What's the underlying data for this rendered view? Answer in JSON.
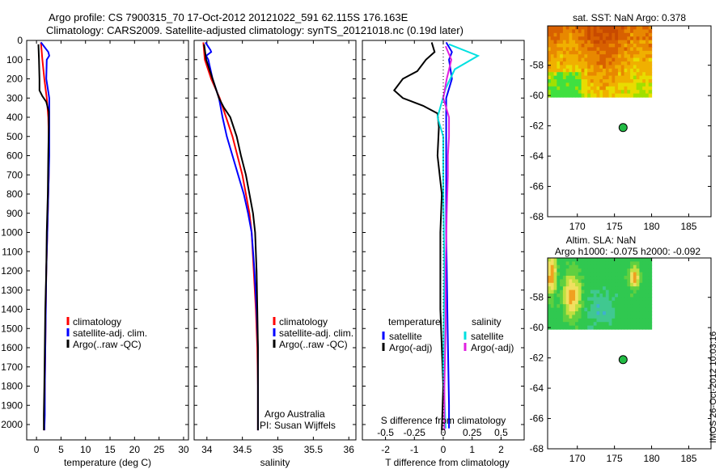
{
  "page": {
    "title_line1": "Argo profile: CS 7900315_70 17-Oct-2012 20121022_591 62.115S 176.163E",
    "title_line2": "Climatology: CARS2009. Satellite-adjusted climatology: synTS_20121018.nc (0.19d later)",
    "stamp": "IMOS 26-Oct-2012 10:03:16"
  },
  "chart_data": [
    {
      "id": "temperature",
      "type": "line",
      "xlabel": "temperature (deg C)",
      "ylabel": "",
      "xlim": [
        -2,
        31
      ],
      "ylim": [
        2080,
        0
      ],
      "xticks": [
        0,
        5,
        10,
        15,
        20,
        25,
        30
      ],
      "yticks": [
        0,
        100,
        200,
        300,
        400,
        500,
        600,
        700,
        800,
        900,
        1000,
        1100,
        1200,
        1300,
        1400,
        1500,
        1600,
        1700,
        1800,
        1900,
        2000
      ],
      "legend": [
        "climatology",
        "satellite-adj. clim.",
        "Argo(..raw -QC)"
      ],
      "series": [
        {
          "name": "climatology",
          "color": "#ff0000",
          "points": [
            [
              0.9,
              10
            ],
            [
              1.2,
              100
            ],
            [
              1.6,
              200
            ],
            [
              2.1,
              300
            ],
            [
              2.4,
              400
            ],
            [
              2.5,
              500
            ],
            [
              2.5,
              700
            ],
            [
              2.4,
              800
            ],
            [
              2.2,
              1000
            ],
            [
              2.0,
              1200
            ],
            [
              1.9,
              1400
            ],
            [
              1.8,
              1600
            ],
            [
              1.7,
              1800
            ],
            [
              1.6,
              1950
            ],
            [
              1.6,
              2030
            ]
          ]
        },
        {
          "name": "satellite-adj. clim.",
          "color": "#0000ff",
          "points": [
            [
              0.9,
              10
            ],
            [
              2.4,
              60
            ],
            [
              2.6,
              80
            ],
            [
              2.1,
              100
            ],
            [
              2.0,
              200
            ],
            [
              2.6,
              300
            ],
            [
              2.6,
              400
            ],
            [
              2.6,
              600
            ],
            [
              2.4,
              800
            ],
            [
              2.2,
              1000
            ],
            [
              2.0,
              1200
            ],
            [
              1.9,
              1400
            ],
            [
              1.8,
              1600
            ],
            [
              1.7,
              1800
            ],
            [
              1.7,
              1950
            ],
            [
              1.6,
              2030
            ]
          ]
        },
        {
          "name": "Argo(..raw -QC)",
          "color": "#000000",
          "points": [
            [
              0.4,
              20
            ],
            [
              0.5,
              100
            ],
            [
              0.6,
              200
            ],
            [
              0.6,
              260
            ],
            [
              1.2,
              290
            ],
            [
              2.0,
              320
            ],
            [
              2.5,
              370
            ],
            [
              2.5,
              450
            ],
            [
              2.4,
              600
            ],
            [
              2.3,
              800
            ],
            [
              2.1,
              1000
            ],
            [
              2.0,
              1200
            ],
            [
              1.8,
              1400
            ],
            [
              1.7,
              1600
            ],
            [
              1.6,
              1800
            ],
            [
              1.5,
              1950
            ],
            [
              1.5,
              2030
            ]
          ]
        }
      ]
    },
    {
      "id": "salinity",
      "type": "line",
      "xlabel": "salinity",
      "ylabel": "",
      "xlim": [
        33.82,
        36.1
      ],
      "ylim": [
        2080,
        0
      ],
      "xticks": [
        34,
        34.5,
        35,
        35.5,
        36
      ],
      "legend": [
        "climatology",
        "satellite-adj. clim.",
        "Argo(..raw -QC)"
      ],
      "notes": [
        "Argo Australia",
        "PI: Susan Wijffels"
      ],
      "series": [
        {
          "name": "climatology",
          "color": "#ff0000",
          "points": [
            [
              33.95,
              10
            ],
            [
              33.97,
              100
            ],
            [
              34.06,
              200
            ],
            [
              34.18,
              300
            ],
            [
              34.27,
              400
            ],
            [
              34.36,
              500
            ],
            [
              34.43,
              600
            ],
            [
              34.5,
              700
            ],
            [
              34.55,
              800
            ],
            [
              34.6,
              900
            ],
            [
              34.63,
              1000
            ],
            [
              34.66,
              1200
            ],
            [
              34.69,
              1400
            ],
            [
              34.71,
              1600
            ],
            [
              34.72,
              1800
            ],
            [
              34.72,
              2030
            ]
          ]
        },
        {
          "name": "satellite-adj. clim.",
          "color": "#0000ff",
          "points": [
            [
              33.98,
              10
            ],
            [
              34.05,
              50
            ],
            [
              34.06,
              60
            ],
            [
              33.99,
              80
            ],
            [
              34.02,
              100
            ],
            [
              34.08,
              200
            ],
            [
              34.17,
              300
            ],
            [
              34.22,
              400
            ],
            [
              34.28,
              500
            ],
            [
              34.36,
              600
            ],
            [
              34.44,
              700
            ],
            [
              34.52,
              800
            ],
            [
              34.58,
              900
            ],
            [
              34.63,
              1000
            ],
            [
              34.67,
              1200
            ],
            [
              34.7,
              1400
            ],
            [
              34.72,
              1600
            ],
            [
              34.72,
              1800
            ],
            [
              34.72,
              2030
            ]
          ]
        },
        {
          "name": "Argo(..raw -QC)",
          "color": "#000000",
          "points": [
            [
              33.96,
              20
            ],
            [
              33.99,
              100
            ],
            [
              34.08,
              200
            ],
            [
              34.17,
              300
            ],
            [
              34.24,
              350
            ],
            [
              34.33,
              400
            ],
            [
              34.42,
              500
            ],
            [
              34.48,
              600
            ],
            [
              34.55,
              700
            ],
            [
              34.6,
              800
            ],
            [
              34.65,
              900
            ],
            [
              34.68,
              1000
            ],
            [
              34.7,
              1200
            ],
            [
              34.71,
              1400
            ],
            [
              34.72,
              1600
            ],
            [
              34.72,
              1800
            ],
            [
              34.72,
              2030
            ]
          ]
        }
      ]
    },
    {
      "id": "difference",
      "type": "line",
      "xlabel": "T difference from climatology",
      "xlabel_top": "S difference from climatology",
      "ylabel": "",
      "xlim": [
        -2.8,
        2.8
      ],
      "ylim": [
        2080,
        0
      ],
      "xticks": [
        -2,
        -1,
        0,
        1,
        2
      ],
      "xticks_s": [
        -0.5,
        -0.25,
        0,
        0.25,
        0.5
      ],
      "legend_temperature_title": "temperature",
      "legend_salinity_title": "salinity",
      "legend": [
        "satellite",
        "Argo(-adj)",
        "satellite",
        "Argo(-adj)"
      ],
      "series": [
        {
          "name": "temperature satellite",
          "color": "#0000ff",
          "points": [
            [
              0.1,
              10
            ],
            [
              0.3,
              60
            ],
            [
              0.2,
              100
            ],
            [
              0.3,
              200
            ],
            [
              0.1,
              300
            ],
            [
              0.1,
              500
            ],
            [
              0.1,
              1000
            ],
            [
              0.15,
              1500
            ],
            [
              0.2,
              1900
            ],
            [
              0.2,
              2020
            ]
          ]
        },
        {
          "name": "temperature Argo(-adj)",
          "color": "#000000",
          "points": [
            [
              -0.4,
              10
            ],
            [
              -0.3,
              60
            ],
            [
              -0.6,
              100
            ],
            [
              -0.9,
              160
            ],
            [
              -1.4,
              200
            ],
            [
              -1.7,
              260
            ],
            [
              -1.4,
              300
            ],
            [
              -0.7,
              340
            ],
            [
              -0.2,
              380
            ],
            [
              -0.15,
              450
            ],
            [
              -0.2,
              600
            ],
            [
              -0.05,
              800
            ],
            [
              -0.1,
              1000
            ],
            [
              -0.1,
              1400
            ],
            [
              0.0,
              1800
            ],
            [
              -0.05,
              2030
            ]
          ]
        },
        {
          "name": "salinity satellite",
          "color": "#00e0e0",
          "points": [
            [
              0.05,
              20
            ],
            [
              0.3,
              80
            ],
            [
              0.1,
              150
            ],
            [
              0.02,
              250
            ],
            [
              -0.05,
              400
            ],
            [
              0.0,
              500
            ],
            [
              0.0,
              800
            ],
            [
              0.01,
              1200
            ],
            [
              0.0,
              1700
            ],
            [
              0.02,
              2020
            ]
          ]
        },
        {
          "name": "salinity Argo(-adj)",
          "color": "#e020e0",
          "points": [
            [
              0.02,
              30
            ],
            [
              0.07,
              100
            ],
            [
              0.03,
              200
            ],
            [
              0.0,
              300
            ],
            [
              0.05,
              400
            ],
            [
              0.05,
              500
            ],
            [
              0.04,
              600
            ],
            [
              0.04,
              700
            ],
            [
              0.03,
              900
            ],
            [
              0.02,
              1200
            ],
            [
              0.02,
              1500
            ],
            [
              0.01,
              1800
            ],
            [
              0.01,
              2030
            ]
          ]
        }
      ]
    },
    {
      "id": "sst-map",
      "type": "heatmap",
      "title": "sat. SST: NaN Argo: 0.378",
      "xlim": [
        166,
        188
      ],
      "ylim": [
        -68,
        -55.4
      ],
      "xticks": [
        170,
        175,
        180,
        185
      ],
      "yticks": [
        -58,
        -60,
        -62,
        -64,
        -66,
        -68
      ],
      "point": {
        "lon": 176.163,
        "lat": -62.115,
        "color": "#22bb44"
      },
      "palette": [
        "#c84a00",
        "#d86000",
        "#e88800",
        "#f0b000",
        "#e8dc00",
        "#a0e000",
        "#40e040"
      ]
    },
    {
      "id": "sla-map",
      "type": "heatmap",
      "title": "Altim. SLA: NaN",
      "subtitle": "Argo h1000: -0.075 h2000: -0.092",
      "xlim": [
        166,
        188
      ],
      "ylim": [
        -68,
        -55.4
      ],
      "xticks": [
        170,
        175,
        180,
        185
      ],
      "yticks": [
        -58,
        -60,
        -62,
        -64,
        -66,
        -68
      ],
      "point": {
        "lon": 176.163,
        "lat": -62.115,
        "color": "#22bb44"
      },
      "palette": [
        "#3fb0d0",
        "#40c890",
        "#30c850",
        "#60d040",
        "#c0e040",
        "#f0e060",
        "#f0a020",
        "#e07010"
      ]
    }
  ]
}
